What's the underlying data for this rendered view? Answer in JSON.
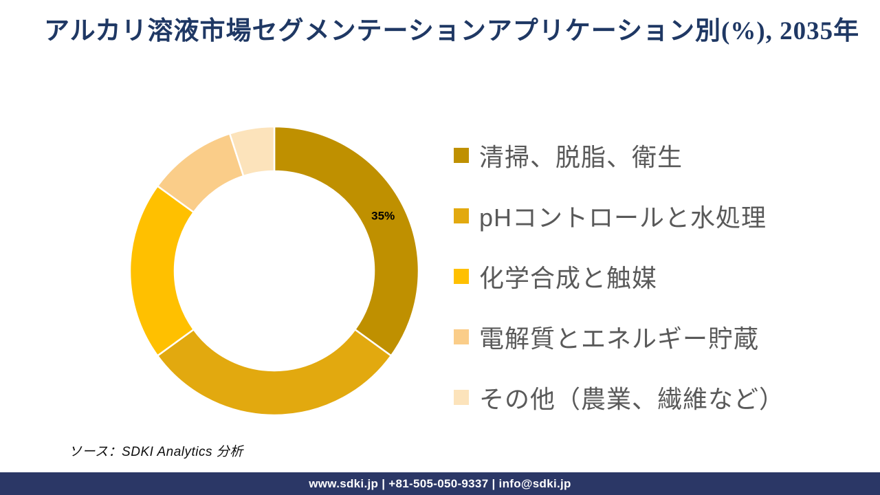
{
  "title": "アルカリ溶液市場セグメンテーションアプリケーション別(%), 2035年",
  "source_note": "ソース：SDKI Analytics 分析",
  "footer": {
    "text": "www.sdki.jp | +81-505-050-9337 | info@sdki.jp"
  },
  "colors": {
    "title_text": "#1F3864",
    "legend_text": "#595959",
    "footer_bg": "#2B3766",
    "data_label_text": "#000000"
  },
  "chart_data": {
    "type": "pie",
    "subtype": "donut",
    "title": "アルカリ溶液市場セグメンテーションアプリケーション別(%), 2035年",
    "year": "2035",
    "unit": "%",
    "categories": [
      "清掃、脱脂、衛生",
      "pHコントロールと水処理",
      "化学合成と触媒",
      "電解質とエネルギー貯蔵",
      "その他（農業、繊維など）"
    ],
    "values": [
      35,
      30,
      20,
      10,
      5
    ],
    "colors": [
      "#BF9000",
      "#E2A90F",
      "#FFC000",
      "#FACD89",
      "#FCE3BB"
    ],
    "data_labels": [
      "35%",
      "",
      "",
      "",
      ""
    ],
    "start_angle_deg": 0,
    "direction": "clockwise",
    "inner_radius_ratio": 0.69,
    "segment_gap_stroke": "#ffffff",
    "legend_position": "right"
  }
}
